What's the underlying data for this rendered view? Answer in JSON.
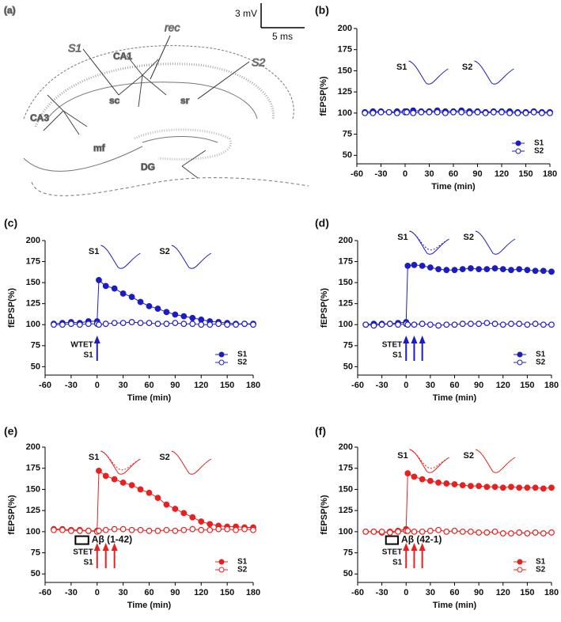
{
  "panel_a": {
    "label": "(a)",
    "labels": [
      "S1",
      "CA1",
      "rec",
      "S2",
      "CA3",
      "sc",
      "sr",
      "mf",
      "DG"
    ],
    "scale_bar": {
      "amplitude": "3 mV",
      "duration": "5 ms"
    }
  },
  "chart_data": [
    {
      "type": "line",
      "label": "(b)",
      "xlabel": "Time (min)",
      "ylabel": "fEPSP(%)",
      "x": [
        -50,
        -40,
        -30,
        -20,
        -10,
        0,
        2,
        10,
        20,
        30,
        40,
        50,
        60,
        70,
        80,
        90,
        100,
        110,
        120,
        130,
        140,
        150,
        160,
        170,
        180
      ],
      "xlim": [
        -60,
        180
      ],
      "xticks": [
        -60,
        -30,
        0,
        30,
        60,
        90,
        120,
        150,
        180
      ],
      "ylim": [
        40,
        200
      ],
      "yticks": [
        50,
        75,
        100,
        125,
        150,
        175,
        200
      ],
      "legend": "lower right",
      "inset_labels": [
        "S1",
        "S2"
      ],
      "series": [
        {
          "name": "S1",
          "color": "#1c1cc4",
          "marker": "filled",
          "values": [
            101,
            102,
            102,
            101,
            102,
            102,
            102,
            103,
            102,
            102,
            103,
            102,
            102,
            103,
            102,
            102,
            101,
            102,
            102,
            102,
            101,
            101,
            102,
            101,
            101
          ]
        },
        {
          "name": "S2",
          "color": "#1c1cc4",
          "marker": "open",
          "values": [
            100,
            100,
            101,
            101,
            100,
            101,
            101,
            100,
            101,
            101,
            101,
            100,
            101,
            101,
            100,
            101,
            100,
            101,
            101,
            100,
            100,
            100,
            101,
            100,
            100
          ]
        }
      ]
    },
    {
      "type": "line",
      "label": "(c)",
      "xlabel": "Time (min)",
      "ylabel": "fEPSP(%)",
      "x": [
        -50,
        -40,
        -30,
        -20,
        -10,
        0,
        2,
        10,
        20,
        30,
        40,
        50,
        60,
        70,
        80,
        90,
        100,
        110,
        120,
        130,
        140,
        150,
        160,
        170,
        180
      ],
      "xlim": [
        -60,
        180
      ],
      "xticks": [
        -60,
        -30,
        0,
        30,
        60,
        90,
        120,
        150,
        180
      ],
      "ylim": [
        40,
        200
      ],
      "yticks": [
        50,
        75,
        100,
        125,
        150,
        175,
        200
      ],
      "legend": "lower right",
      "inset_labels": [
        "S1",
        "S2"
      ],
      "stim": {
        "label": "WTET",
        "pathway": "S1",
        "times": [
          0
        ]
      },
      "series": [
        {
          "name": "S1",
          "color": "#1c1cc4",
          "marker": "filled",
          "values": [
            101,
            102,
            103,
            102,
            104,
            104,
            153,
            146,
            143,
            137,
            133,
            127,
            122,
            119,
            115,
            112,
            110,
            108,
            106,
            104,
            103,
            102,
            101,
            101,
            101
          ]
        },
        {
          "name": "S2",
          "color": "#1c1cc4",
          "marker": "open",
          "values": [
            100,
            100,
            101,
            100,
            101,
            101,
            100,
            101,
            102,
            102,
            103,
            102,
            102,
            101,
            101,
            102,
            101,
            101,
            100,
            100,
            101,
            100,
            100,
            101,
            100
          ]
        }
      ]
    },
    {
      "type": "line",
      "label": "(d)",
      "xlabel": "Time (min)",
      "ylabel": "fEPSP(%)",
      "x": [
        -50,
        -40,
        -30,
        -20,
        -10,
        0,
        2,
        10,
        20,
        30,
        40,
        50,
        60,
        70,
        80,
        90,
        100,
        110,
        120,
        130,
        140,
        150,
        160,
        170,
        180
      ],
      "xlim": [
        -60,
        180
      ],
      "xticks": [
        -60,
        -30,
        0,
        30,
        60,
        90,
        120,
        150,
        180
      ],
      "ylim": [
        40,
        200
      ],
      "yticks": [
        50,
        75,
        100,
        125,
        150,
        175,
        200
      ],
      "legend": "lower right",
      "inset_labels": [
        "S1",
        "S2"
      ],
      "stim": {
        "label": "STET",
        "pathway": "S1",
        "times": [
          0,
          10,
          20
        ]
      },
      "series": [
        {
          "name": "S1",
          "color": "#1c1cc4",
          "marker": "filled",
          "values": [
            100,
            101,
            101,
            101,
            102,
            103,
            170,
            171,
            170,
            168,
            166,
            165,
            165,
            166,
            167,
            166,
            166,
            167,
            166,
            165,
            166,
            165,
            164,
            164,
            163
          ]
        },
        {
          "name": "S2",
          "color": "#1c1cc4",
          "marker": "open",
          "values": [
            100,
            99,
            100,
            101,
            100,
            101,
            100,
            100,
            101,
            100,
            99,
            100,
            100,
            101,
            101,
            101,
            102,
            101,
            100,
            101,
            101,
            100,
            101,
            100,
            100
          ]
        }
      ]
    },
    {
      "type": "line",
      "label": "(e)",
      "xlabel": "Time (min)",
      "ylabel": "fEPSP(%)",
      "x": [
        -50,
        -40,
        -30,
        -20,
        -10,
        0,
        2,
        10,
        20,
        30,
        40,
        50,
        60,
        70,
        80,
        90,
        100,
        110,
        120,
        130,
        140,
        150,
        160,
        170,
        180
      ],
      "xlim": [
        -60,
        180
      ],
      "xticks": [
        -60,
        -30,
        0,
        30,
        60,
        90,
        120,
        150,
        180
      ],
      "ylim": [
        40,
        200
      ],
      "yticks": [
        50,
        75,
        100,
        125,
        150,
        175,
        200
      ],
      "legend": "lower right",
      "inset_labels": [
        "S1",
        "S2"
      ],
      "stim": {
        "label": "STET",
        "pathway": "S1",
        "times": [
          0,
          10,
          20
        ]
      },
      "drug": {
        "label": "Aβ (1-42)",
        "span": [
          -25,
          -10
        ]
      },
      "series": [
        {
          "name": "S1",
          "color": "#e8201f",
          "marker": "filled",
          "values": [
            103,
            103,
            102,
            102,
            101,
            101,
            172,
            166,
            162,
            158,
            155,
            150,
            146,
            140,
            132,
            127,
            122,
            117,
            112,
            109,
            107,
            106,
            106,
            105,
            105
          ]
        },
        {
          "name": "S2",
          "color": "#e8201f",
          "marker": "open",
          "values": [
            102,
            102,
            101,
            101,
            101,
            100,
            101,
            102,
            103,
            103,
            102,
            102,
            101,
            101,
            102,
            101,
            102,
            103,
            102,
            102,
            103,
            103,
            102,
            103,
            102
          ]
        }
      ]
    },
    {
      "type": "line",
      "label": "(f)",
      "xlabel": "Time (min)",
      "ylabel": "fEPSP(%)",
      "x": [
        -50,
        -40,
        -30,
        -20,
        -10,
        0,
        2,
        10,
        20,
        30,
        40,
        50,
        60,
        70,
        80,
        90,
        100,
        110,
        120,
        130,
        140,
        150,
        160,
        170,
        180
      ],
      "xlim": [
        -60,
        180
      ],
      "xticks": [
        -60,
        -30,
        0,
        30,
        60,
        90,
        120,
        150,
        180
      ],
      "ylim": [
        40,
        200
      ],
      "yticks": [
        50,
        75,
        100,
        125,
        150,
        175,
        200
      ],
      "legend": "lower right",
      "inset_labels": [
        "S1",
        "S2"
      ],
      "stim": {
        "label": "STET",
        "pathway": "S1",
        "times": [
          0,
          10,
          20
        ]
      },
      "drug": {
        "label": "Aβ (42-1)",
        "span": [
          -25,
          -10
        ]
      },
      "series": [
        {
          "name": "S1",
          "color": "#e8201f",
          "marker": "filled",
          "values": [
            100,
            100,
            99,
            100,
            101,
            103,
            169,
            165,
            162,
            160,
            158,
            157,
            156,
            155,
            154,
            154,
            153,
            153,
            152,
            153,
            152,
            152,
            152,
            151,
            152
          ]
        },
        {
          "name": "S2",
          "color": "#e8201f",
          "marker": "open",
          "values": [
            100,
            100,
            100,
            99,
            100,
            101,
            101,
            100,
            100,
            101,
            102,
            100,
            101,
            100,
            100,
            99,
            99,
            100,
            98,
            98,
            99,
            98,
            99,
            98,
            99
          ]
        }
      ]
    }
  ]
}
